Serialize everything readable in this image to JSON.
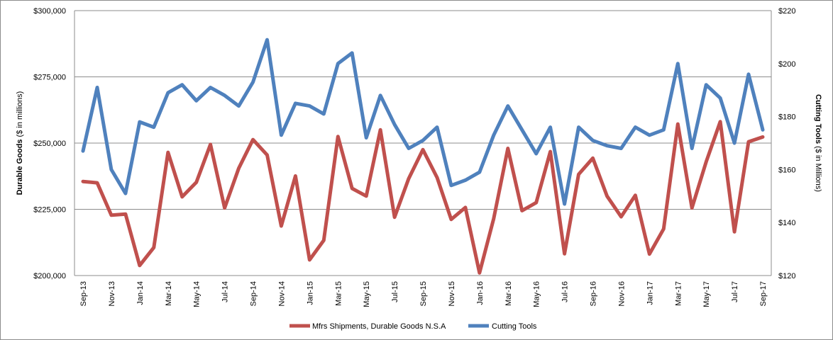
{
  "chart_data": {
    "type": "line",
    "categories": [
      "Sep-13",
      "Oct-13",
      "Nov-13",
      "Dec-13",
      "Jan-14",
      "Feb-14",
      "Mar-14",
      "Apr-14",
      "May-14",
      "Jun-14",
      "Jul-14",
      "Aug-14",
      "Sep-14",
      "Oct-14",
      "Nov-14",
      "Dec-14",
      "Jan-15",
      "Feb-15",
      "Mar-15",
      "Apr-15",
      "May-15",
      "Jun-15",
      "Jul-15",
      "Aug-15",
      "Sep-15",
      "Oct-15",
      "Nov-15",
      "Dec-15",
      "Jan-16",
      "Feb-16",
      "Mar-16",
      "Apr-16",
      "May-16",
      "Jun-16",
      "Jul-16",
      "Aug-16",
      "Sep-16",
      "Oct-16",
      "Nov-16",
      "Dec-16",
      "Jan-17",
      "Feb-17",
      "Mar-17",
      "Apr-17",
      "May-17",
      "Jun-17",
      "Jul-17",
      "Aug-17",
      "Sep-17"
    ],
    "x_tick_labels": [
      "Sep-13",
      "Nov-13",
      "Jan-14",
      "Mar-14",
      "May-14",
      "Jul-14",
      "Sep-14",
      "Nov-14",
      "Jan-15",
      "Mar-15",
      "May-15",
      "Jul-15",
      "Sep-15",
      "Nov-15",
      "Jan-16",
      "Mar-16",
      "May-16",
      "Jul-16",
      "Sep-16",
      "Nov-16",
      "Jan-17",
      "Mar-17",
      "May-17",
      "Jul-17",
      "Sep-17"
    ],
    "series": [
      {
        "name": "Mfrs Shipments, Durable Goods N.S.A",
        "axis": "left",
        "color": "#c0504d",
        "values": [
          235500,
          235000,
          222800,
          223200,
          203800,
          210600,
          246500,
          229700,
          235200,
          249500,
          225500,
          240500,
          251300,
          245500,
          218700,
          237600,
          205900,
          213300,
          252500,
          232900,
          230000,
          255000,
          222000,
          236600,
          247500,
          237000,
          221200,
          225700,
          201000,
          221500,
          248000,
          224500,
          227500,
          246800,
          208200,
          238200,
          244300,
          230000,
          222200,
          230300,
          208100,
          217600,
          257200,
          225500,
          242900,
          258100,
          216500,
          250500,
          252300
        ]
      },
      {
        "name": "Cutting Tools",
        "axis": "right",
        "color": "#4f81bd",
        "values": [
          167,
          191,
          160,
          151,
          178,
          176,
          189,
          192,
          186,
          191,
          188,
          184,
          193,
          209,
          173,
          185,
          184,
          181,
          200,
          204,
          172,
          188,
          177,
          168,
          171,
          176,
          154,
          156,
          159,
          173,
          184,
          175,
          166,
          176,
          147,
          176,
          171,
          169,
          168,
          176,
          173,
          175,
          200,
          168,
          192,
          187,
          170,
          196,
          175
        ]
      }
    ],
    "left_axis": {
      "label_bold": "Durable Goods",
      "label_rest": " ($ in millions)",
      "min": 200000,
      "max": 300000,
      "step": 25000,
      "tick_labels": [
        "$200,000",
        "$225,000",
        "$250,000",
        "$275,000",
        "$300,000"
      ]
    },
    "right_axis": {
      "label_bold": "Cutting Tools",
      "label_rest": " ($ in Millions)",
      "min": 120,
      "max": 220,
      "step": 20,
      "tick_labels": [
        "$120",
        "$140",
        "$160",
        "$180",
        "$200",
        "$220"
      ]
    },
    "gridlines": true,
    "legend_position": "bottom"
  }
}
